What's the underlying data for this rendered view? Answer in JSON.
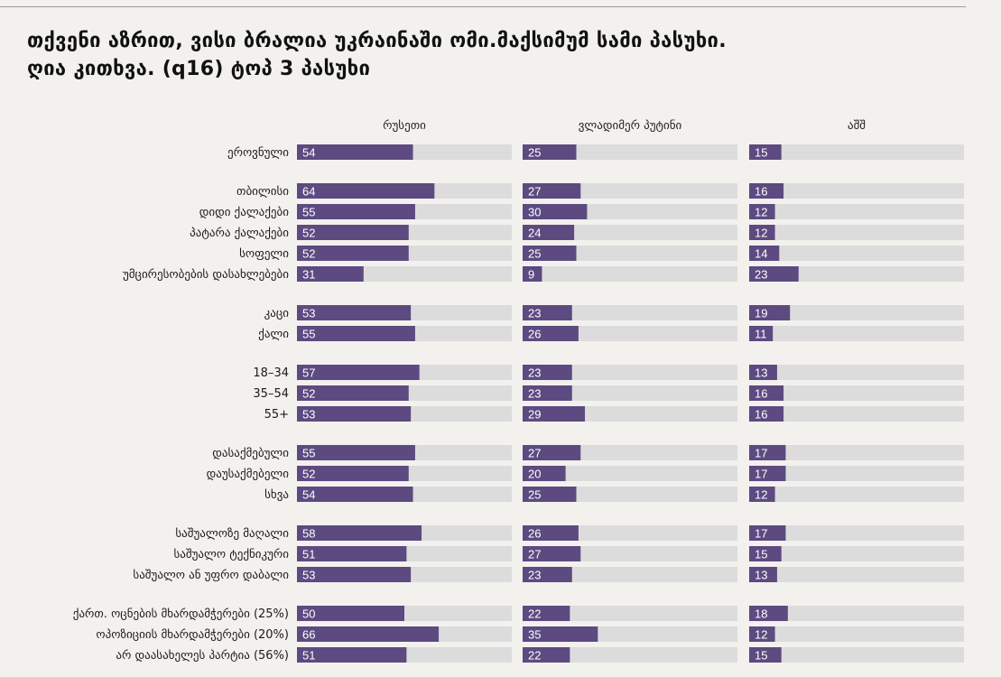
{
  "title": {
    "line1": "თქვენი აზრით, ვისი ბრალია უკრაინაში ომი.მაქსიმუმ სამი პასუხი.",
    "line2": "ღია კითხვა. (q16) ტოპ 3 პასუხი"
  },
  "colors": {
    "bar": "#5d4a81",
    "track": "#dcdcdc",
    "background": "#f3f1ee"
  },
  "chart_data": {
    "type": "bar",
    "orientation": "horizontal",
    "xlim": [
      0,
      100
    ],
    "grid": false,
    "series": [
      {
        "name": "რუსეთი",
        "values": [
          54,
          64,
          55,
          52,
          52,
          31,
          53,
          55,
          57,
          52,
          53,
          55,
          52,
          54,
          58,
          51,
          53,
          50,
          66,
          51
        ]
      },
      {
        "name": "ვლადიმერ პუტინი",
        "values": [
          25,
          27,
          30,
          24,
          25,
          9,
          23,
          26,
          23,
          23,
          29,
          27,
          20,
          25,
          26,
          27,
          23,
          22,
          35,
          22
        ]
      },
      {
        "name": "აშშ",
        "values": [
          15,
          16,
          12,
          12,
          14,
          23,
          19,
          11,
          13,
          16,
          16,
          17,
          17,
          12,
          17,
          15,
          13,
          18,
          12,
          15
        ]
      }
    ],
    "groups": [
      [
        "ეროვნული"
      ],
      [
        "თბილისი",
        "დიდი ქალაქები",
        "პატარა ქალაქები",
        "სოფელი",
        "უმცირესობების დასახლებები"
      ],
      [
        "კაცი",
        "ქალი"
      ],
      [
        "18–34",
        "35–54",
        "55+"
      ],
      [
        "დასაქმებული",
        "დაუსაქმებელი",
        "სხვა"
      ],
      [
        "საშუალოზე მაღალი",
        "საშუალო ტექნიკური",
        "საშუალო ან უფრო დაბალი"
      ],
      [
        "ქართ. ოცნების მხარდამჭერები (25%)",
        "ოპოზიციის მხარდამჭერები (20%)",
        "არ დაასახელეს პარტია (56%)"
      ]
    ]
  }
}
